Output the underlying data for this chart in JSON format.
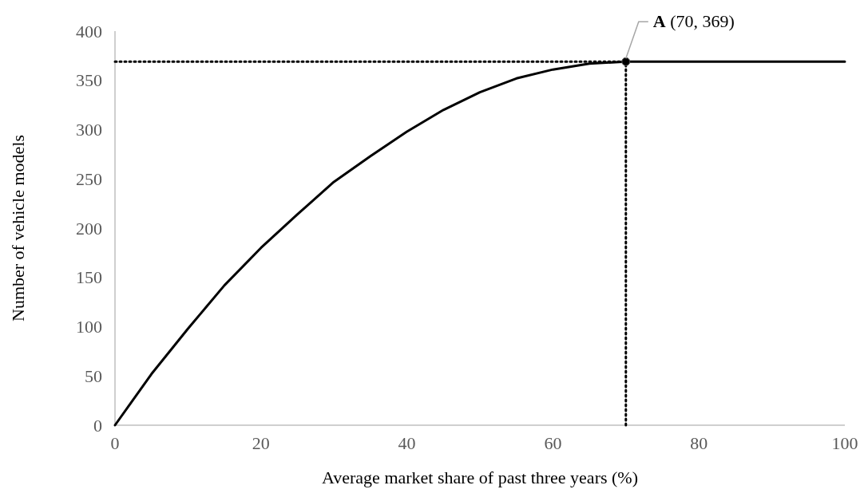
{
  "chart_data": {
    "type": "line",
    "xlabel": "Average market share of past three years (%)",
    "ylabel": "Number of vehicle models",
    "x": [
      0,
      5,
      10,
      15,
      20,
      25,
      30,
      35,
      40,
      45,
      50,
      55,
      60,
      65,
      70,
      100
    ],
    "series": [
      {
        "color": "#000000",
        "values": [
          0,
          52,
          98,
          142,
          180,
          214,
          247,
          273,
          298,
          320,
          338,
          352,
          361,
          367,
          369,
          369
        ]
      }
    ],
    "xlim": [
      0,
      100
    ],
    "xticks": [
      0,
      20,
      40,
      60,
      80,
      100
    ],
    "ylim": [
      0,
      400
    ],
    "yticks": [
      0,
      50,
      100,
      150,
      200,
      250,
      300,
      350,
      400
    ],
    "grid": false,
    "marker": "none",
    "line_style": "solid",
    "ref_lines": [
      {
        "axis": "y",
        "value": 369,
        "color": "#000000",
        "line_style": "dotted"
      },
      {
        "axis": "x",
        "value": 70,
        "color": "#000000",
        "line_style": "dotted"
      }
    ],
    "annotations": [
      {
        "text": "A (70, 369)",
        "x": 70,
        "y": 369
      }
    ]
  }
}
